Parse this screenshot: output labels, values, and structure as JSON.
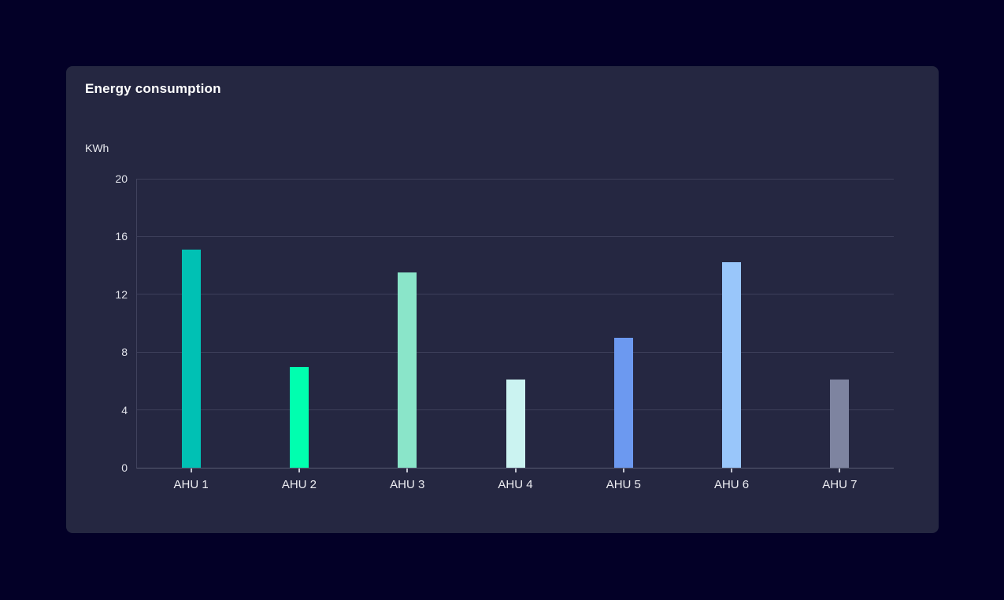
{
  "panel": {
    "title": "Energy consumption",
    "unit_label": "KWh"
  },
  "chart_data": {
    "type": "bar",
    "title": "Energy consumption",
    "xlabel": "",
    "ylabel": "KWh",
    "categories": [
      "AHU 1",
      "AHU 2",
      "AHU 3",
      "AHU 4",
      "AHU 5",
      "AHU 6",
      "AHU 7"
    ],
    "values": [
      15.1,
      7,
      13.5,
      6.1,
      9,
      14.2,
      6.1
    ],
    "ylim": [
      0,
      20
    ],
    "yticks": [
      0,
      4,
      8,
      12,
      16,
      20
    ],
    "bar_colors": [
      "#00c1b4",
      "#00ffaf",
      "#8ae5c9",
      "#cbf3f1",
      "#6c99f0",
      "#99c6fa",
      "#7e84a0"
    ],
    "grid": "horizontal",
    "legend": "none"
  },
  "colors": {
    "page_background": "#030027",
    "panel_background": "#252741",
    "gridline": "#3d3f5a",
    "axis_baseline": "#585b73",
    "text_primary": "#ffffff",
    "text_secondary": "#e0e1e9"
  }
}
